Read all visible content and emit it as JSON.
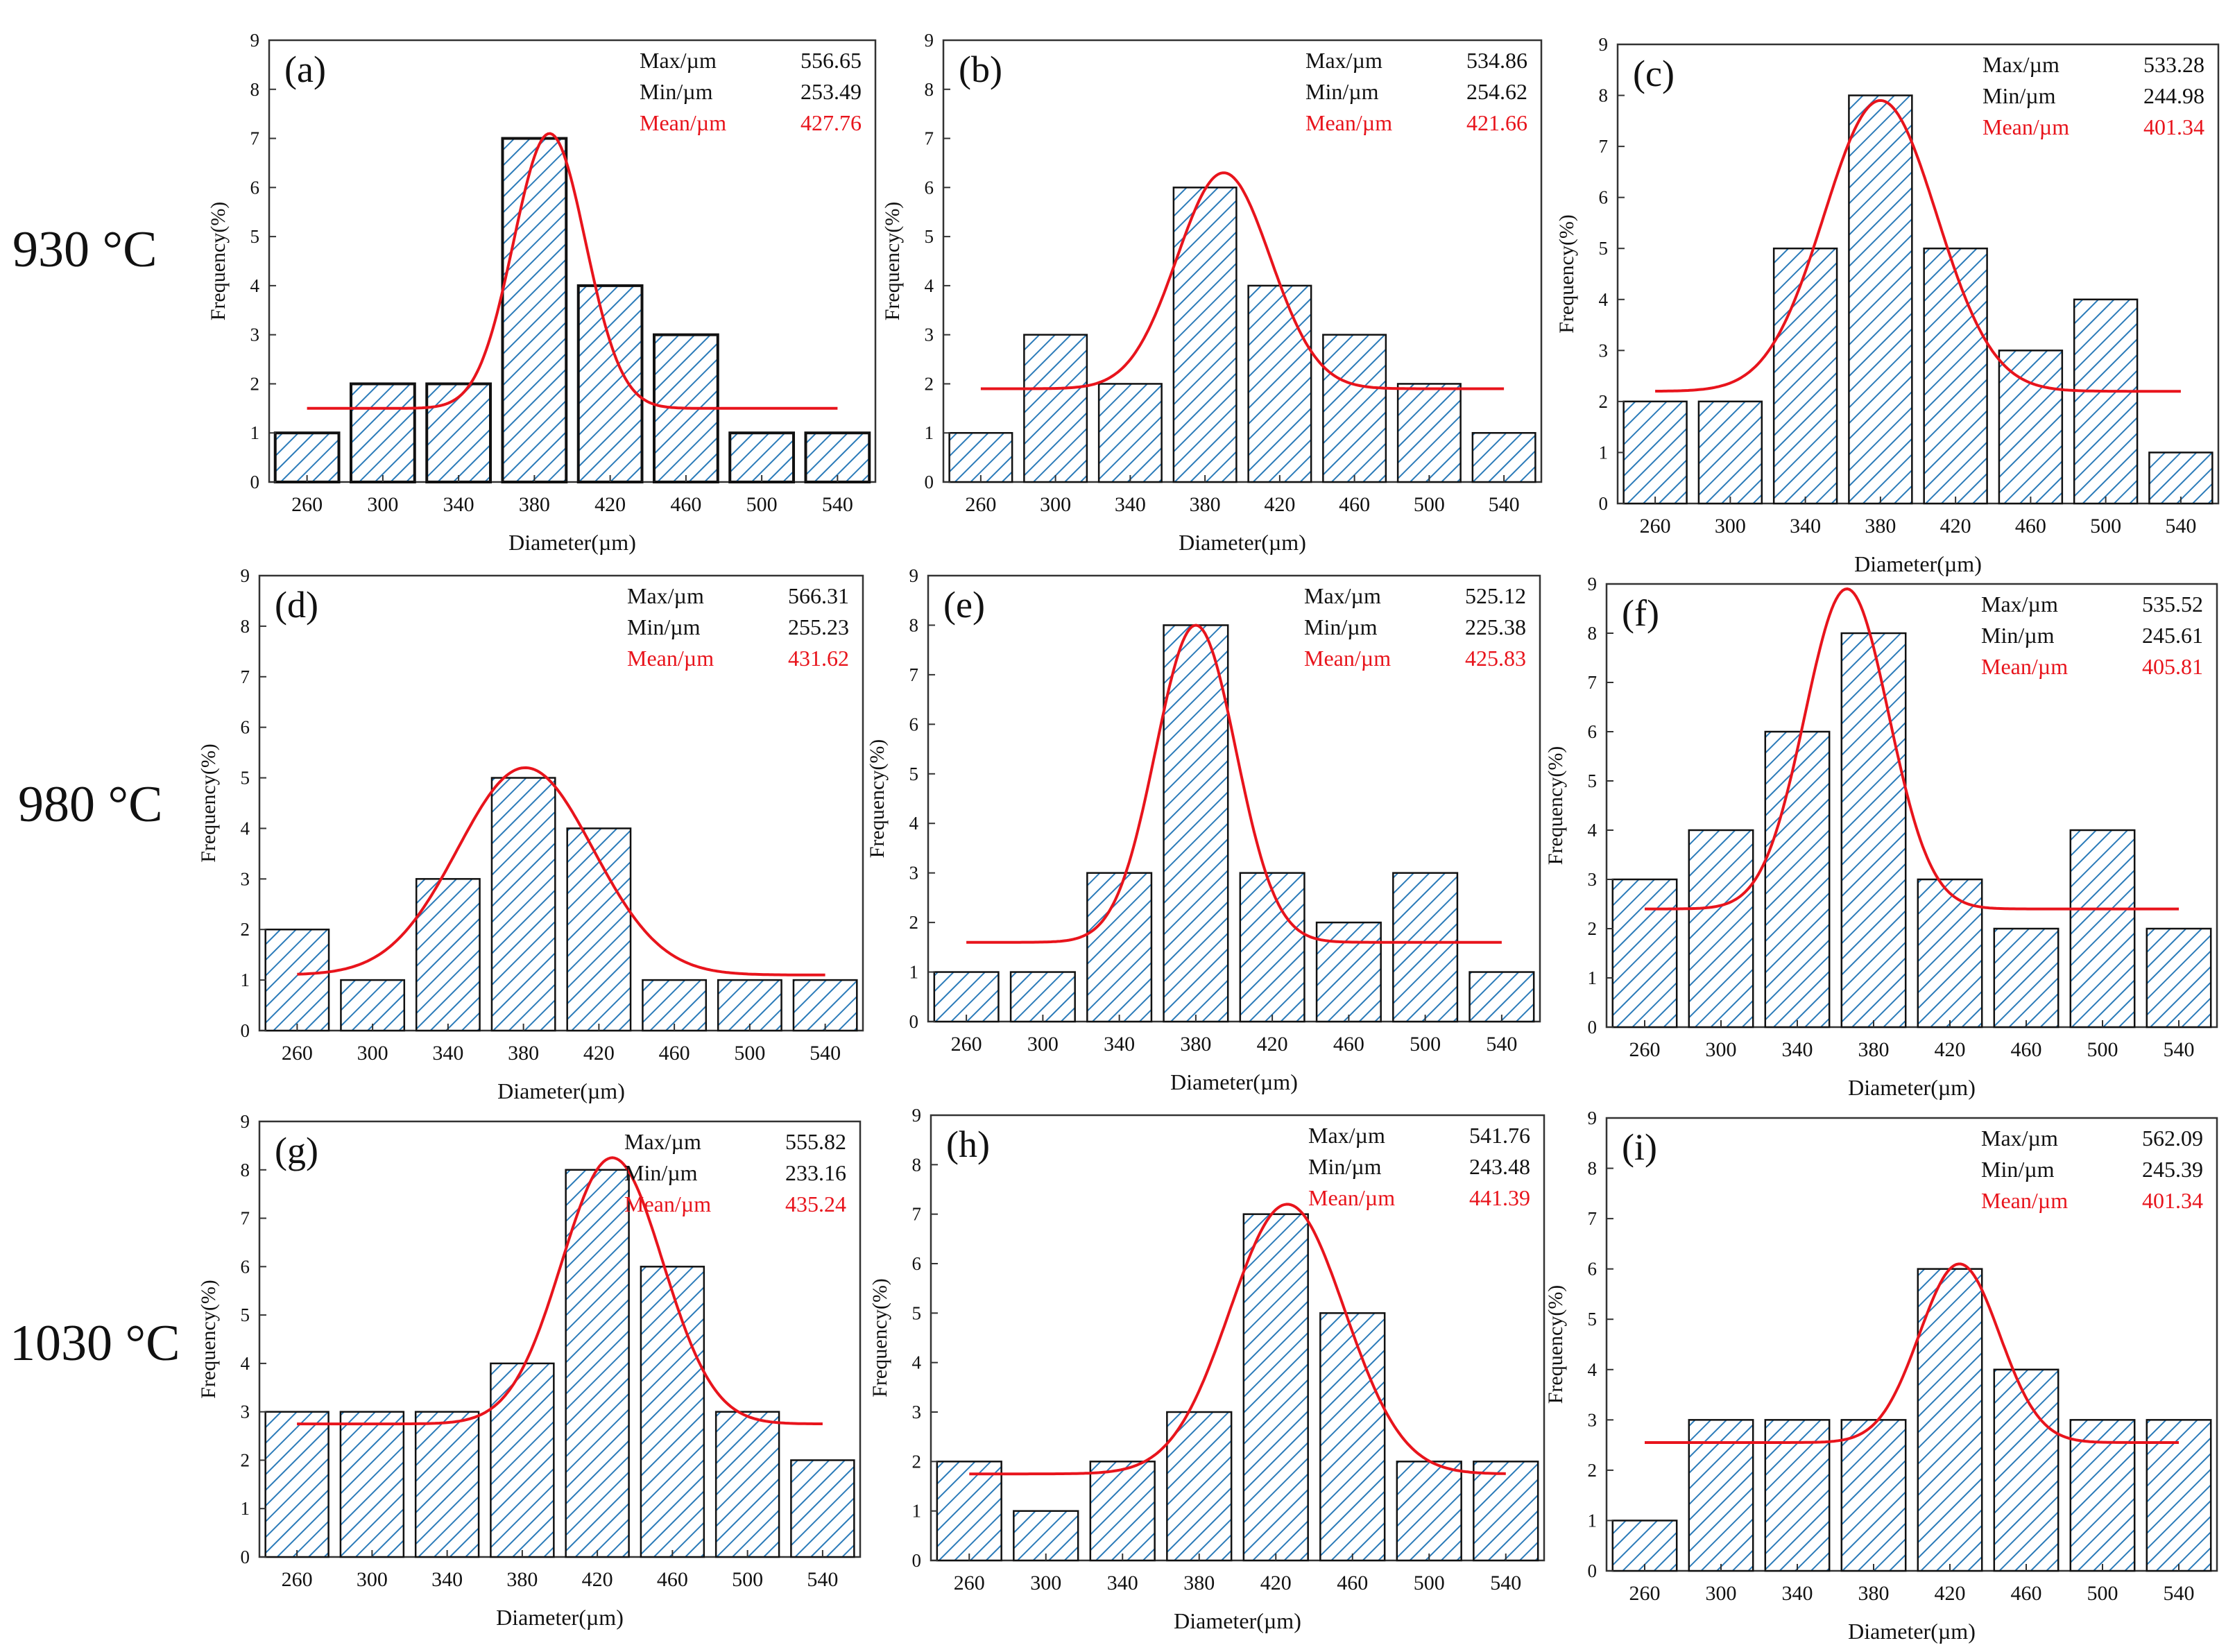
{
  "row_labels": [
    "930 °C",
    "980 °C",
    "1030 °C"
  ],
  "colors": {
    "bar_fill": "#ffffff",
    "hatch": "#2b7bb9",
    "bar_edge": "#111111",
    "fit_curve": "#e8141c",
    "mean_text": "#e8141c",
    "text": "#111111"
  },
  "chart_data": [
    {
      "id": "a",
      "type": "bar",
      "panel_label": "(a)",
      "categories": [
        260,
        300,
        340,
        380,
        420,
        460,
        500,
        540
      ],
      "values": [
        1,
        2,
        2,
        7,
        4,
        3,
        1,
        1
      ],
      "hatched": false,
      "stats": [
        {
          "label": "Max/µm",
          "value": "556.65"
        },
        {
          "label": "Min/µm",
          "value": "253.49"
        },
        {
          "label": "Mean/µm",
          "value": "427.76"
        }
      ],
      "fit": {
        "baseline": 1.5,
        "amplitude": 5.6,
        "center": 388,
        "sigma": 19
      },
      "xlabel": "Diameter(µm)",
      "ylabel": "Frequency(%)",
      "ylim": [
        0,
        9
      ],
      "yticks": [
        0,
        1,
        2,
        3,
        4,
        5,
        6,
        7,
        8,
        9
      ]
    },
    {
      "id": "b",
      "type": "bar",
      "panel_label": "(b)",
      "categories": [
        260,
        300,
        340,
        380,
        420,
        460,
        500,
        540
      ],
      "values": [
        1,
        3,
        2,
        6,
        4,
        3,
        2,
        1
      ],
      "hatched": true,
      "stats": [
        {
          "label": "Max/µm",
          "value": "534.86"
        },
        {
          "label": "Min/µm",
          "value": "254.62"
        },
        {
          "label": "Mean/µm",
          "value": "421.66"
        }
      ],
      "fit": {
        "baseline": 1.9,
        "amplitude": 4.4,
        "center": 390,
        "sigma": 25
      },
      "xlabel": "Diameter(µm)",
      "ylabel": "Frequency(%)",
      "ylim": [
        0,
        9
      ],
      "yticks": [
        0,
        1,
        2,
        3,
        4,
        5,
        6,
        7,
        8,
        9
      ]
    },
    {
      "id": "c",
      "type": "bar",
      "panel_label": "(c)",
      "categories": [
        260,
        300,
        340,
        380,
        420,
        460,
        500,
        540
      ],
      "values": [
        2,
        2,
        5,
        8,
        5,
        3,
        4,
        1
      ],
      "hatched": true,
      "stats": [
        {
          "label": "Max/µm",
          "value": "533.28"
        },
        {
          "label": "Min/µm",
          "value": "244.98"
        },
        {
          "label": "Mean/µm",
          "value": "401.34"
        }
      ],
      "fit": {
        "baseline": 2.2,
        "amplitude": 5.7,
        "center": 380,
        "sigma": 30
      },
      "xlabel": "Diameter(µm)",
      "ylabel": "Frequency(%)",
      "ylim": [
        0,
        9
      ],
      "yticks": [
        0,
        1,
        2,
        3,
        4,
        5,
        6,
        7,
        8,
        9
      ]
    },
    {
      "id": "d",
      "type": "bar",
      "panel_label": "(d)",
      "categories": [
        260,
        300,
        340,
        380,
        420,
        460,
        500,
        540
      ],
      "values": [
        2,
        1,
        3,
        5,
        4,
        1,
        1,
        1
      ],
      "hatched": true,
      "stats": [
        {
          "label": "Max/µm",
          "value": "566.31"
        },
        {
          "label": "Min/µm",
          "value": "255.23"
        },
        {
          "label": "Mean/µm",
          "value": "431.62"
        }
      ],
      "fit": {
        "baseline": 1.1,
        "amplitude": 4.1,
        "center": 381,
        "sigma": 36
      },
      "xlabel": "Diameter(µm)",
      "ylabel": "Frequency(%)",
      "ylim": [
        0,
        9
      ],
      "yticks": [
        0,
        1,
        2,
        3,
        4,
        5,
        6,
        7,
        8,
        9
      ]
    },
    {
      "id": "e",
      "type": "bar",
      "panel_label": "(e)",
      "categories": [
        260,
        300,
        340,
        380,
        420,
        460,
        500,
        540
      ],
      "values": [
        1,
        1,
        3,
        8,
        3,
        2,
        3,
        1
      ],
      "hatched": true,
      "stats": [
        {
          "label": "Max/µm",
          "value": "525.12"
        },
        {
          "label": "Min/µm",
          "value": "225.38"
        },
        {
          "label": "Mean/µm",
          "value": "425.83"
        }
      ],
      "fit": {
        "baseline": 1.6,
        "amplitude": 6.4,
        "center": 380,
        "sigma": 21
      },
      "xlabel": "Diameter(µm)",
      "ylabel": "Frequency(%)",
      "ylim": [
        0,
        9
      ],
      "yticks": [
        0,
        1,
        2,
        3,
        4,
        5,
        6,
        7,
        8,
        9
      ]
    },
    {
      "id": "f",
      "type": "bar",
      "panel_label": "(f)",
      "categories": [
        260,
        300,
        340,
        380,
        420,
        460,
        500,
        540
      ],
      "values": [
        3,
        4,
        6,
        8,
        3,
        2,
        4,
        2
      ],
      "hatched": true,
      "stats": [
        {
          "label": "Max/µm",
          "value": "535.52"
        },
        {
          "label": "Min/µm",
          "value": "245.61"
        },
        {
          "label": "Mean/µm",
          "value": "405.81"
        }
      ],
      "fit": {
        "baseline": 2.4,
        "amplitude": 6.5,
        "center": 366,
        "sigma": 22
      },
      "xlabel": "Diameter(µm)",
      "ylabel": "Frequency(%)",
      "ylim": [
        0,
        9
      ],
      "yticks": [
        0,
        1,
        2,
        3,
        4,
        5,
        6,
        7,
        8,
        9
      ]
    },
    {
      "id": "g",
      "type": "bar",
      "panel_label": "(g)",
      "categories": [
        260,
        300,
        340,
        380,
        420,
        460,
        500,
        540
      ],
      "values": [
        3,
        3,
        3,
        4,
        8,
        6,
        3,
        2
      ],
      "hatched": true,
      "stats": [
        {
          "label": "Max/µm",
          "value": "555.82"
        },
        {
          "label": "Min/µm",
          "value": "233.16"
        },
        {
          "label": "Mean/µm",
          "value": "435.24"
        }
      ],
      "fit": {
        "baseline": 2.75,
        "amplitude": 5.5,
        "center": 428,
        "sigma": 27
      },
      "xlabel": "Diameter(µm)",
      "ylabel": "Frequency(%)",
      "ylim": [
        0,
        9
      ],
      "yticks": [
        0,
        1,
        2,
        3,
        4,
        5,
        6,
        7,
        8,
        9
      ]
    },
    {
      "id": "h",
      "type": "bar",
      "panel_label": "(h)",
      "categories": [
        260,
        300,
        340,
        380,
        420,
        460,
        500,
        540
      ],
      "values": [
        2,
        1,
        2,
        3,
        7,
        5,
        2,
        2
      ],
      "hatched": true,
      "stats": [
        {
          "label": "Max/µm",
          "value": "541.76"
        },
        {
          "label": "Min/µm",
          "value": "243.48"
        },
        {
          "label": "Mean/µm",
          "value": "441.39"
        }
      ],
      "fit": {
        "baseline": 1.75,
        "amplitude": 5.45,
        "center": 426,
        "sigma": 30
      },
      "xlabel": "Diameter(µm)",
      "ylabel": "Frequency(%)",
      "ylim": [
        0,
        9
      ],
      "yticks": [
        0,
        1,
        2,
        3,
        4,
        5,
        6,
        7,
        8,
        9
      ]
    },
    {
      "id": "i",
      "type": "bar",
      "panel_label": "(i)",
      "categories": [
        260,
        300,
        340,
        380,
        420,
        460,
        500,
        540
      ],
      "values": [
        1,
        3,
        3,
        3,
        6,
        4,
        3,
        3
      ],
      "hatched": true,
      "stats": [
        {
          "label": "Max/µm",
          "value": "562.09"
        },
        {
          "label": "Min/µm",
          "value": "245.39"
        },
        {
          "label": "Mean/µm",
          "value": "401.34"
        }
      ],
      "fit": {
        "baseline": 2.55,
        "amplitude": 3.55,
        "center": 425,
        "sigma": 21
      },
      "xlabel": "Diameter(µm)",
      "ylabel": "Frequency(%)",
      "ylim": [
        0,
        9
      ],
      "yticks": [
        0,
        1,
        2,
        3,
        4,
        5,
        6,
        7,
        8,
        9
      ]
    }
  ]
}
